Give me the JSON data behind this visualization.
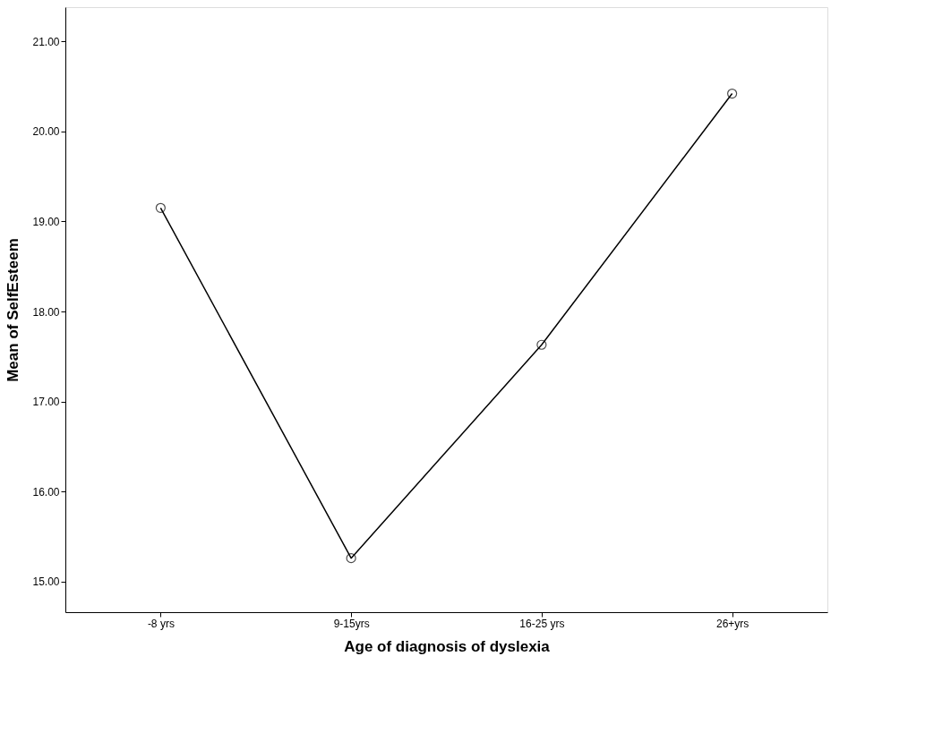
{
  "chart_data": {
    "type": "line",
    "xlabel": "Age of diagnosis of dyslexia",
    "ylabel": "Mean of SelfEsteem",
    "categories": [
      "-8 yrs",
      "9-15yrs",
      "16-25 yrs",
      "26+yrs"
    ],
    "series": [
      {
        "color": "#000000",
        "values": [
          19.15,
          15.26,
          17.63,
          20.42
        ]
      }
    ],
    "ylim": [
      14.66,
      21.38
    ],
    "yticks": [
      {
        "value": 15,
        "label": "15.00"
      },
      {
        "value": 16,
        "label": "16.00"
      },
      {
        "value": 17,
        "label": "17.00"
      },
      {
        "value": 18,
        "label": "18.00"
      },
      {
        "value": 19,
        "label": "19.00"
      },
      {
        "value": 20,
        "label": "20.00"
      },
      {
        "value": 21,
        "label": "21.00"
      }
    ],
    "grid": false,
    "legend": false,
    "marker": "circle",
    "line_style": "solid"
  }
}
